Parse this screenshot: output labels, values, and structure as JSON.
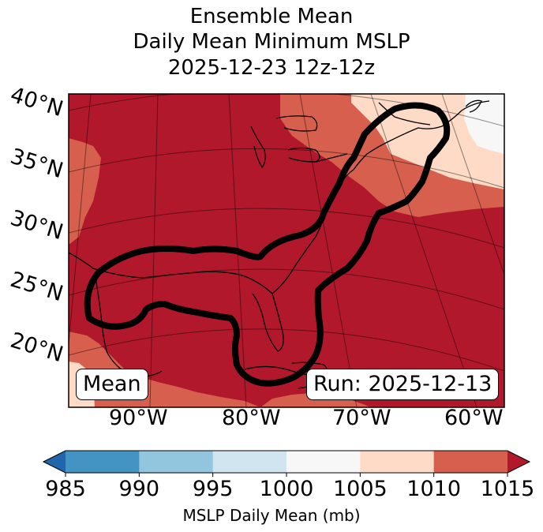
{
  "title": {
    "line1": "Ensemble Mean",
    "line2": "Daily Mean Minimum MSLP",
    "line3": "2025-12-23 12z-12z"
  },
  "map": {
    "lat_labels": [
      "40°N",
      "35°N",
      "30°N",
      "25°N",
      "20°N"
    ],
    "lon_labels": [
      "90°W",
      "80°W",
      "70°W",
      "60°W"
    ],
    "mean_label": "Mean",
    "run_label": "Run: 2025-12-13",
    "colors": {
      "base": "#b2182b",
      "c1005_1010": "#d6604d",
      "c1000_1005": "#fddbc7",
      "c995_1000": "#f7f7f7",
      "contour": "#000000"
    }
  },
  "colorbar": {
    "ticks": [
      "985",
      "990",
      "995",
      "1000",
      "1005",
      "1010",
      "1015"
    ],
    "label": "MSLP Daily Mean (mb)",
    "colors": [
      "#2166ac",
      "#4393c3",
      "#92c5de",
      "#d1e5f0",
      "#f7f7f7",
      "#fddbc7",
      "#d6604d",
      "#b2182b"
    ]
  }
}
